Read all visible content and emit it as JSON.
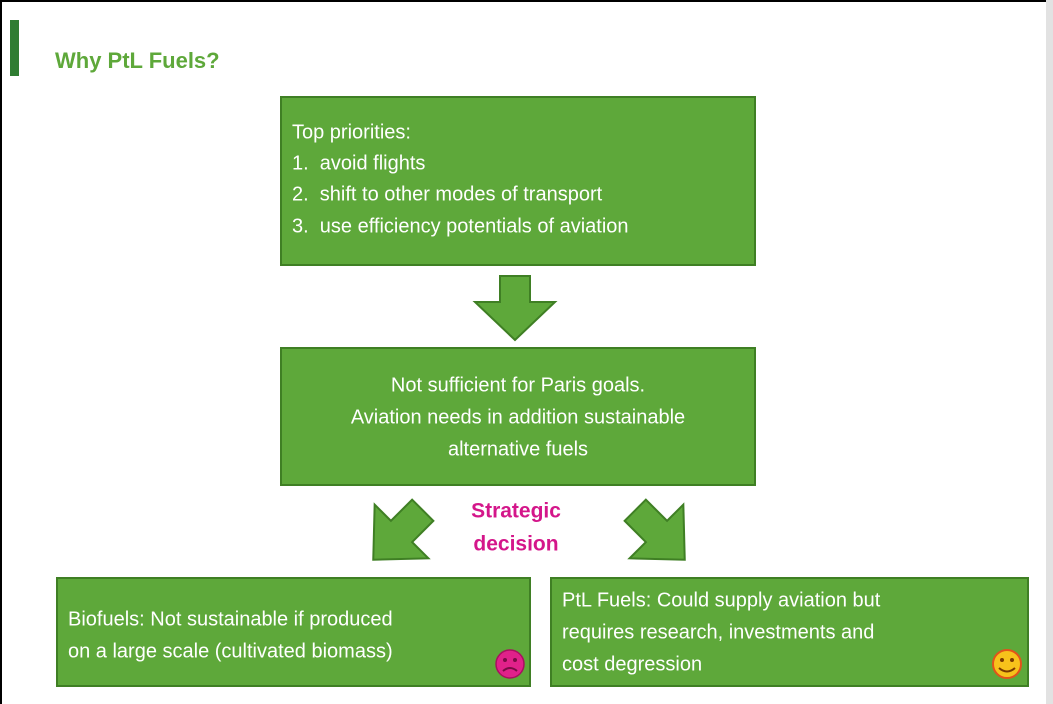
{
  "title": "Why PtL Fuels?",
  "boxes": [
    {
      "lines": [
        "Top priorities:",
        "1.  avoid flights",
        "2.  shift to other modes of transport",
        "3.  use efficiency potentials of aviation"
      ]
    },
    {
      "lines": [
        "Not sufficient for Paris goals.",
        "Aviation needs in addition sustainable",
        "alternative fuels"
      ]
    },
    {
      "lines": [
        "Biofuels: Not sustainable if produced",
        "on a large scale (cultivated biomass)"
      ]
    },
    {
      "lines": [
        "PtL Fuels: Could supply aviation but",
        "requires research, investments and",
        "cost degression"
      ]
    }
  ],
  "decision": [
    "Strategic",
    "decision"
  ]
}
